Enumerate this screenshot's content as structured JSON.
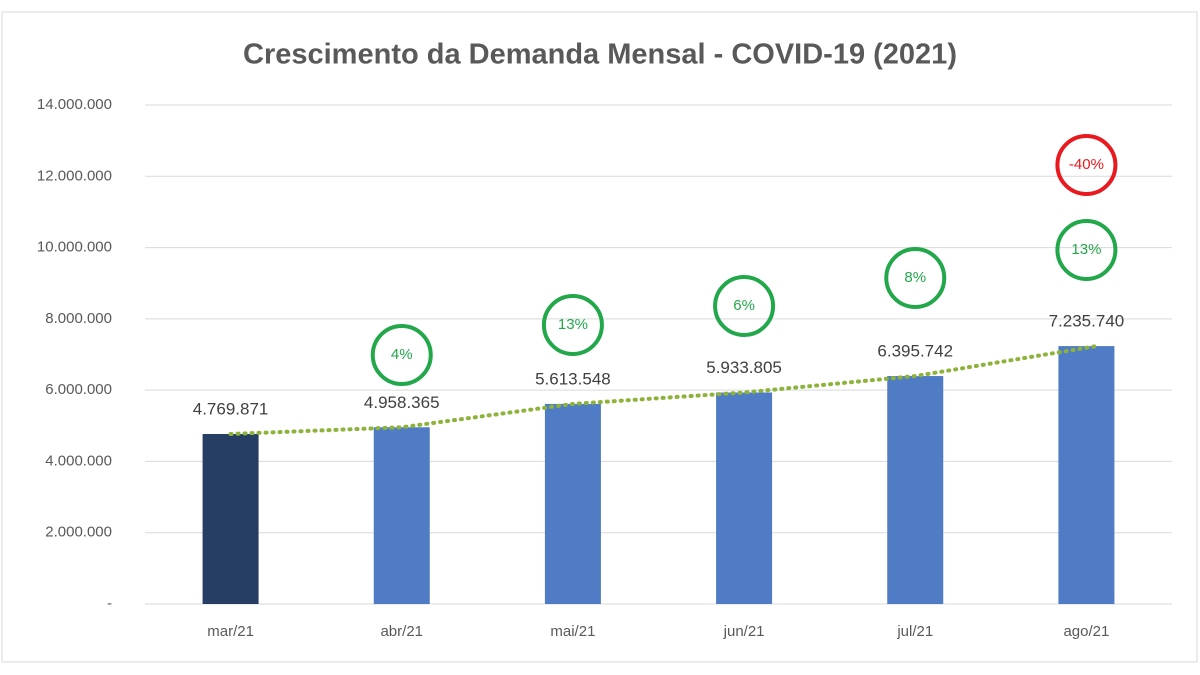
{
  "chart_data": {
    "type": "bar",
    "title": "Crescimento da Demanda Mensal - COVID-19 (2021)",
    "categories": [
      "mar/21",
      "abr/21",
      "mai/21",
      "jun/21",
      "jul/21",
      "ago/21"
    ],
    "values": [
      4769871,
      4958365,
      5613548,
      5933805,
      6395742,
      7235740
    ],
    "value_labels": [
      "4.769.871",
      "4.958.365",
      "5.613.548",
      "5.933.805",
      "6.395.742",
      "7.235.740"
    ],
    "colors": [
      "#263e63",
      "#4f7cc4",
      "#4f7cc4",
      "#4f7cc4",
      "#4f7cc4",
      "#4f7cc4"
    ],
    "ylim": [
      0,
      14000000
    ],
    "yticks": [
      {
        "value": 0,
        "label": "-"
      },
      {
        "value": 2000000,
        "label": "2.000.000"
      },
      {
        "value": 4000000,
        "label": "4.000.000"
      },
      {
        "value": 6000000,
        "label": "6.000.000"
      },
      {
        "value": 8000000,
        "label": "8.000.000"
      },
      {
        "value": 10000000,
        "label": "10.000.000"
      },
      {
        "value": 12000000,
        "label": "12.000.000"
      },
      {
        "value": 14000000,
        "label": "14.000.000"
      }
    ],
    "grid": true,
    "trendline": true,
    "trendline_color": "#8db33a",
    "growth_labels": [
      null,
      "4%",
      "13%",
      "6%",
      "8%",
      "13%"
    ],
    "growth_color": "#22a84b",
    "extra_annotation": {
      "text": "-40%",
      "color": "#e8191f"
    }
  }
}
